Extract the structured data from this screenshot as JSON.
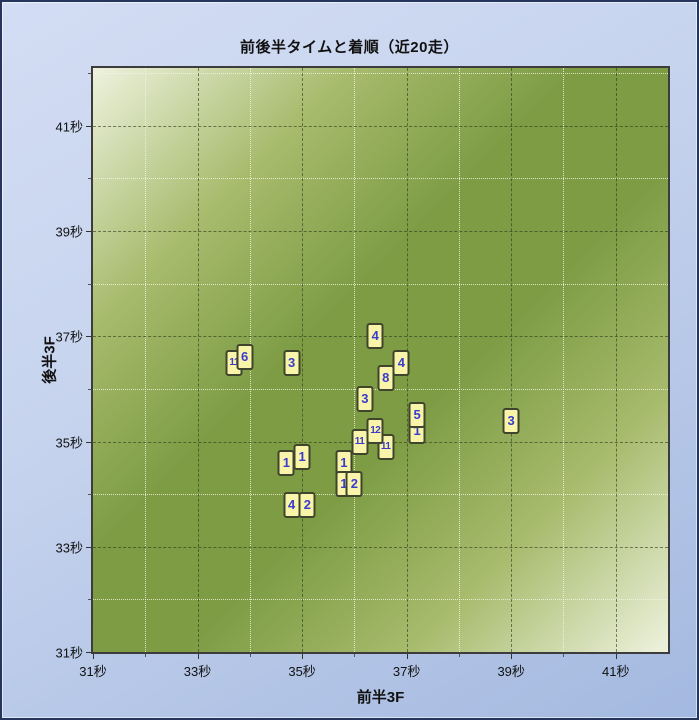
{
  "title": "前後半タイムと着順（近20走）",
  "x_axis": {
    "title": "前半3F",
    "unit": "秒",
    "range": [
      31,
      42
    ],
    "major_ticks": [
      31,
      33,
      35,
      37,
      39,
      41
    ],
    "major_gridlines": [
      33,
      35,
      37,
      39,
      41
    ],
    "minor_gridlines": [
      32,
      34,
      36,
      38,
      40
    ]
  },
  "y_axis": {
    "title": "後半3F",
    "unit": "秒",
    "range": [
      31,
      42.1
    ],
    "major_ticks": [
      31,
      33,
      35,
      37,
      39,
      41
    ],
    "major_gridlines": [
      33,
      35,
      37,
      39,
      41
    ],
    "minor_gridlines": [
      32,
      34,
      36,
      38,
      40,
      42
    ]
  },
  "chart_data": {
    "type": "scatter",
    "title": "前後半タイムと着順（近20走）",
    "xlabel": "前半3F",
    "ylabel": "後半3F",
    "x_unit": "秒",
    "y_unit": "秒",
    "xlim": [
      31,
      42
    ],
    "ylim": [
      31,
      42.1
    ],
    "grid": "major dashed dark every 2s, minor dotted light every 1s",
    "legend_position": "none",
    "marker_style": "yellow rounded box with blue finish-position number",
    "labels_are": "着順",
    "points": [
      {
        "x": 33.7,
        "y": 36.5,
        "label": "11"
      },
      {
        "x": 33.9,
        "y": 36.6,
        "label": "6"
      },
      {
        "x": 34.8,
        "y": 36.5,
        "label": "3"
      },
      {
        "x": 36.4,
        "y": 37.0,
        "label": "4"
      },
      {
        "x": 36.6,
        "y": 36.2,
        "label": "8"
      },
      {
        "x": 36.9,
        "y": 36.5,
        "label": "4"
      },
      {
        "x": 36.2,
        "y": 35.8,
        "label": "3"
      },
      {
        "x": 34.7,
        "y": 34.6,
        "label": "1"
      },
      {
        "x": 35.0,
        "y": 34.7,
        "label": "1"
      },
      {
        "x": 34.8,
        "y": 33.8,
        "label": "4"
      },
      {
        "x": 35.1,
        "y": 33.8,
        "label": "2"
      },
      {
        "x": 35.8,
        "y": 34.6,
        "label": "1"
      },
      {
        "x": 35.8,
        "y": 34.2,
        "label": "1"
      },
      {
        "x": 36.0,
        "y": 34.2,
        "label": "2"
      },
      {
        "x": 36.1,
        "y": 35.0,
        "label": "11"
      },
      {
        "x": 36.6,
        "y": 34.9,
        "label": "11"
      },
      {
        "x": 36.4,
        "y": 35.2,
        "label": "12"
      },
      {
        "x": 37.2,
        "y": 35.2,
        "label": "1"
      },
      {
        "x": 37.2,
        "y": 35.5,
        "label": "5"
      },
      {
        "x": 39.0,
        "y": 35.4,
        "label": "3"
      }
    ]
  },
  "colors": {
    "frame-border": "#26355c",
    "bg-top": "#d3ddf4",
    "bg-bottom": "#a4b9e0",
    "plot-light": "#eef2de",
    "plot-dark": "#7d9c44",
    "plot-border": "#3c3c3c",
    "grid-major": "rgba(45,55,25,0.6)",
    "grid-minor": "rgba(245,248,230,0.8)",
    "marker-fill": "#f8f4aa",
    "marker-border": "#3f452c",
    "marker-text": "#3b3bcd",
    "text": "#111111"
  }
}
